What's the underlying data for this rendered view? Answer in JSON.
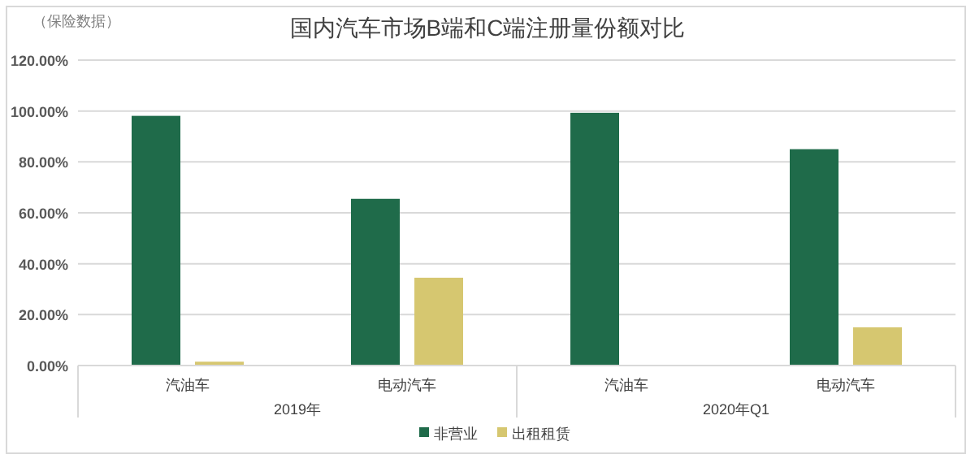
{
  "chart_data": {
    "type": "bar",
    "title": "国内汽车市场B端和C端注册量份额对比",
    "categories": [
      "汽油车",
      "电动汽车",
      "汽油车",
      "电动汽车"
    ],
    "series": [
      {
        "name": "非营业",
        "color": "#1f6b4a",
        "values": [
          98.1,
          65.5,
          99.3,
          85.0
        ]
      },
      {
        "name": "出租租赁",
        "color": "#d6c770",
        "values": [
          1.5,
          34.5,
          null,
          15.0
        ]
      }
    ],
    "ylim": [
      0,
      120
    ],
    "yticks": [
      {
        "value": 0,
        "label": "0.00%"
      },
      {
        "value": 20,
        "label": "20.00%"
      },
      {
        "value": 40,
        "label": "40.00%"
      },
      {
        "value": 60,
        "label": "60.00%"
      },
      {
        "value": 80,
        "label": "80.00%"
      },
      {
        "value": 100,
        "label": "100.00%"
      },
      {
        "value": 120,
        "label": "120.00%"
      }
    ],
    "grid": "y",
    "legend": "bottom",
    "annotations": [
      "（保险数据）",
      "2019年",
      "2020年Q1"
    ]
  }
}
